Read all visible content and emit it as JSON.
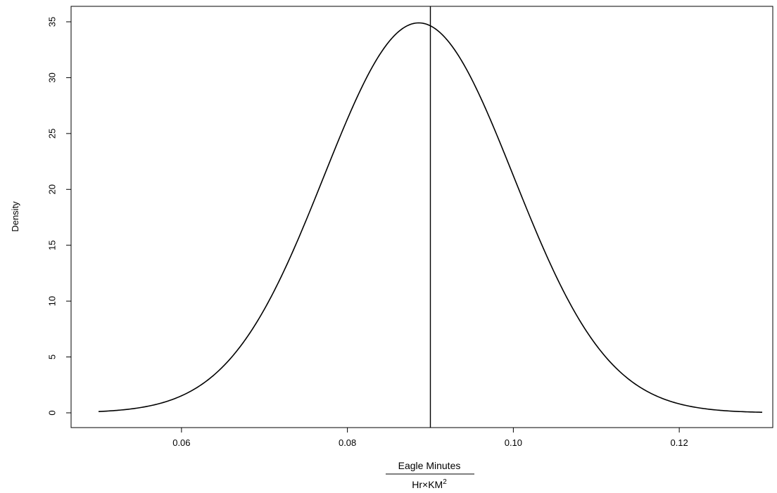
{
  "chart_data": {
    "type": "line",
    "title": "",
    "ylabel": "Density",
    "xlabel": {
      "numerator": "Eagle Minutes",
      "denominator_base": "Hr",
      "denominator_times": "×",
      "denominator_unit": "KM",
      "denominator_exponent": "2"
    },
    "xlim": [
      0.05,
      0.13
    ],
    "ylim": [
      0,
      35
    ],
    "x_ticks": [
      0.06,
      0.08,
      0.1,
      0.12
    ],
    "x_tick_labels": [
      "0.06",
      "0.08",
      "0.10",
      "0.12"
    ],
    "y_ticks": [
      0,
      5,
      10,
      15,
      20,
      25,
      30,
      35
    ],
    "y_tick_labels": [
      "0",
      "5",
      "10",
      "15",
      "20",
      "25",
      "30",
      "35"
    ],
    "grid": false,
    "series": [
      {
        "distribution": "normal",
        "mean": 0.0886,
        "sd": 0.01143,
        "x_range": [
          0.05,
          0.13
        ]
      }
    ],
    "vertical_line": {
      "x": 0.09
    }
  }
}
